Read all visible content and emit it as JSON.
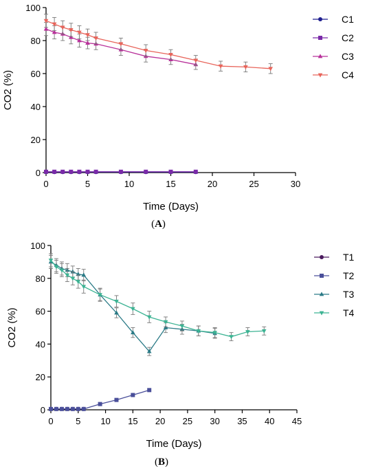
{
  "chart_data": [
    {
      "type": "line",
      "panel_label": "(A)",
      "xlabel": "Time (Days)",
      "ylabel": "CO2 (%)",
      "xlim": [
        0,
        30
      ],
      "ylim": [
        0,
        100
      ],
      "xticks": [
        0,
        5,
        10,
        15,
        20,
        25,
        30
      ],
      "yticks": [
        0,
        20,
        40,
        60,
        80,
        100
      ],
      "legend_position": "right",
      "series": [
        {
          "name": "C1",
          "color": "#1f1f8f",
          "marker": "circle",
          "x": [
            0,
            1,
            2,
            3,
            4,
            5,
            6,
            9,
            12,
            15,
            18
          ],
          "y": [
            0.3,
            0.3,
            0.3,
            0.3,
            0.3,
            0.3,
            0.3,
            0.3,
            0.3,
            0.3,
            0.3
          ],
          "err": []
        },
        {
          "name": "C2",
          "color": "#7a2aa8",
          "marker": "square",
          "x": [
            0,
            1,
            2,
            3,
            4,
            5,
            6,
            9,
            12,
            15,
            18
          ],
          "y": [
            0.5,
            0.5,
            0.5,
            0.5,
            0.5,
            0.5,
            0.5,
            0.5,
            0.5,
            0.5,
            0.5
          ],
          "err": []
        },
        {
          "name": "C3",
          "color": "#b8309a",
          "marker": "triangle-up",
          "x": [
            0,
            1,
            2,
            3,
            4,
            5,
            6,
            9,
            12,
            15,
            18
          ],
          "y": [
            87,
            85,
            84,
            82,
            80,
            78.5,
            78,
            74.5,
            70.5,
            68.5,
            65.5
          ],
          "err": [
            4,
            4,
            4,
            4,
            4,
            3.5,
            3.5,
            3.5,
            3.5,
            3,
            3
          ]
        },
        {
          "name": "C4",
          "color": "#e8645a",
          "marker": "triangle-down",
          "x": [
            0,
            1,
            2,
            3,
            4,
            5,
            6,
            9,
            12,
            15,
            18,
            21,
            24,
            27
          ],
          "y": [
            92,
            90,
            88,
            86.5,
            85,
            83.5,
            81.5,
            78,
            74,
            71.5,
            68,
            64.5,
            64,
            63
          ],
          "err": [
            4,
            4,
            4,
            4,
            4,
            3.5,
            3.5,
            3.5,
            3.5,
            3,
            3,
            3,
            3,
            3
          ]
        }
      ]
    },
    {
      "type": "line",
      "panel_label": "(B)",
      "xlabel": "Time (Days)",
      "ylabel": "CO2 (%)",
      "xlim": [
        0,
        45
      ],
      "ylim": [
        0,
        100
      ],
      "xticks": [
        0,
        5,
        10,
        15,
        20,
        25,
        30,
        35,
        40,
        45
      ],
      "yticks": [
        0,
        20,
        40,
        60,
        80,
        100
      ],
      "legend_position": "right",
      "series": [
        {
          "name": "T1",
          "color": "#4b1a5e",
          "marker": "circle",
          "x": [
            0,
            1,
            2,
            3,
            4,
            5,
            6
          ],
          "y": [
            0.5,
            0.5,
            0.5,
            0.5,
            0.5,
            0.5,
            0.5
          ],
          "err": []
        },
        {
          "name": "T2",
          "color": "#4a4f9a",
          "marker": "square",
          "x": [
            0,
            1,
            2,
            3,
            4,
            5,
            6,
            9,
            12,
            15,
            18
          ],
          "y": [
            0.5,
            0.5,
            0.5,
            0.5,
            0.5,
            0.5,
            0.5,
            3.5,
            6,
            9,
            12
          ],
          "err": []
        },
        {
          "name": "T3",
          "color": "#2a7a86",
          "marker": "triangle-up",
          "x": [
            0,
            1,
            2,
            3,
            4,
            5,
            6,
            9,
            12,
            15,
            18,
            21,
            24,
            27,
            30
          ],
          "y": [
            90,
            88,
            86,
            85,
            84,
            82.5,
            82,
            70,
            59,
            47,
            35.5,
            50,
            49,
            48,
            46.5
          ],
          "err": [
            4,
            4,
            4,
            4,
            3.5,
            3.5,
            3.5,
            3.5,
            3,
            3,
            2.5,
            3,
            3,
            3,
            3
          ]
        },
        {
          "name": "T4",
          "color": "#3cb393",
          "marker": "triangle-down",
          "x": [
            0,
            1,
            2,
            3,
            4,
            5,
            6,
            9,
            12,
            15,
            18,
            21,
            24,
            27,
            30,
            33,
            36,
            39
          ],
          "y": [
            91,
            87,
            85,
            82,
            80,
            78,
            75,
            70,
            66,
            61.5,
            56.5,
            53.5,
            51,
            48,
            47,
            44.5,
            47.5,
            48
          ],
          "err": [
            4,
            4,
            4,
            4,
            4,
            4,
            4,
            4,
            3.5,
            3.5,
            3.5,
            3,
            3,
            3,
            3,
            2.5,
            2.5,
            2.5
          ]
        }
      ]
    }
  ]
}
